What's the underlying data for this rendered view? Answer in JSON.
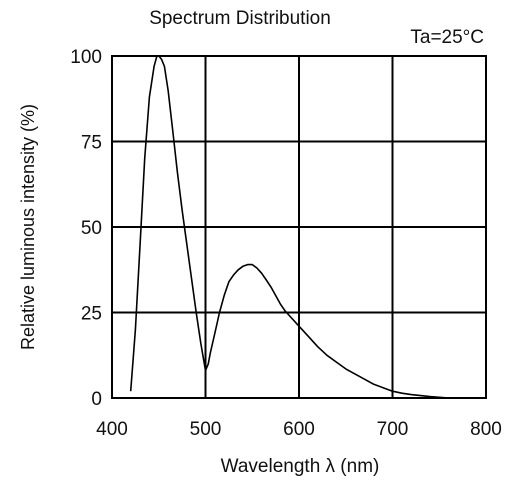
{
  "chart_data": {
    "type": "line",
    "title": "Spectrum Distribution",
    "annotation": "Ta=25°C",
    "xlabel": "Wavelength  λ (nm)",
    "ylabel": "Relative luminous intensity (%)",
    "xlim": [
      400,
      800
    ],
    "ylim": [
      0,
      100
    ],
    "x_ticks": [
      400,
      500,
      600,
      700,
      800
    ],
    "x_tick_labels": [
      "400",
      "500",
      "600",
      "700",
      "800"
    ],
    "y_ticks": [
      0,
      25,
      50,
      75,
      100
    ],
    "y_tick_labels": [
      "0",
      "25",
      "50",
      "75",
      "100"
    ],
    "grid": true,
    "series": [
      {
        "color": "#000000",
        "x": [
          420,
          425,
          430,
          435,
          440,
          445,
          448,
          450,
          453,
          456,
          460,
          465,
          470,
          475,
          480,
          485,
          490,
          495,
          500,
          503,
          505,
          510,
          515,
          520,
          525,
          530,
          535,
          540,
          545,
          550,
          555,
          560,
          565,
          570,
          575,
          580,
          585,
          590,
          600,
          610,
          620,
          630,
          640,
          650,
          660,
          670,
          680,
          690,
          700,
          710,
          720,
          730,
          740,
          750,
          760
        ],
        "y": [
          2,
          20,
          45,
          70,
          88,
          97,
          100,
          100,
          99,
          97,
          90,
          78,
          66,
          55,
          45,
          35,
          25,
          16,
          8,
          10,
          13,
          19,
          25,
          30,
          34,
          36,
          37.5,
          38.5,
          39,
          39,
          38,
          36.5,
          34.5,
          32.5,
          30,
          27.5,
          25.5,
          24,
          21,
          18,
          15,
          12.5,
          10.5,
          8.5,
          7,
          5.5,
          4,
          3,
          2,
          1.4,
          1,
          0.7,
          0.4,
          0.2,
          0
        ]
      }
    ]
  }
}
